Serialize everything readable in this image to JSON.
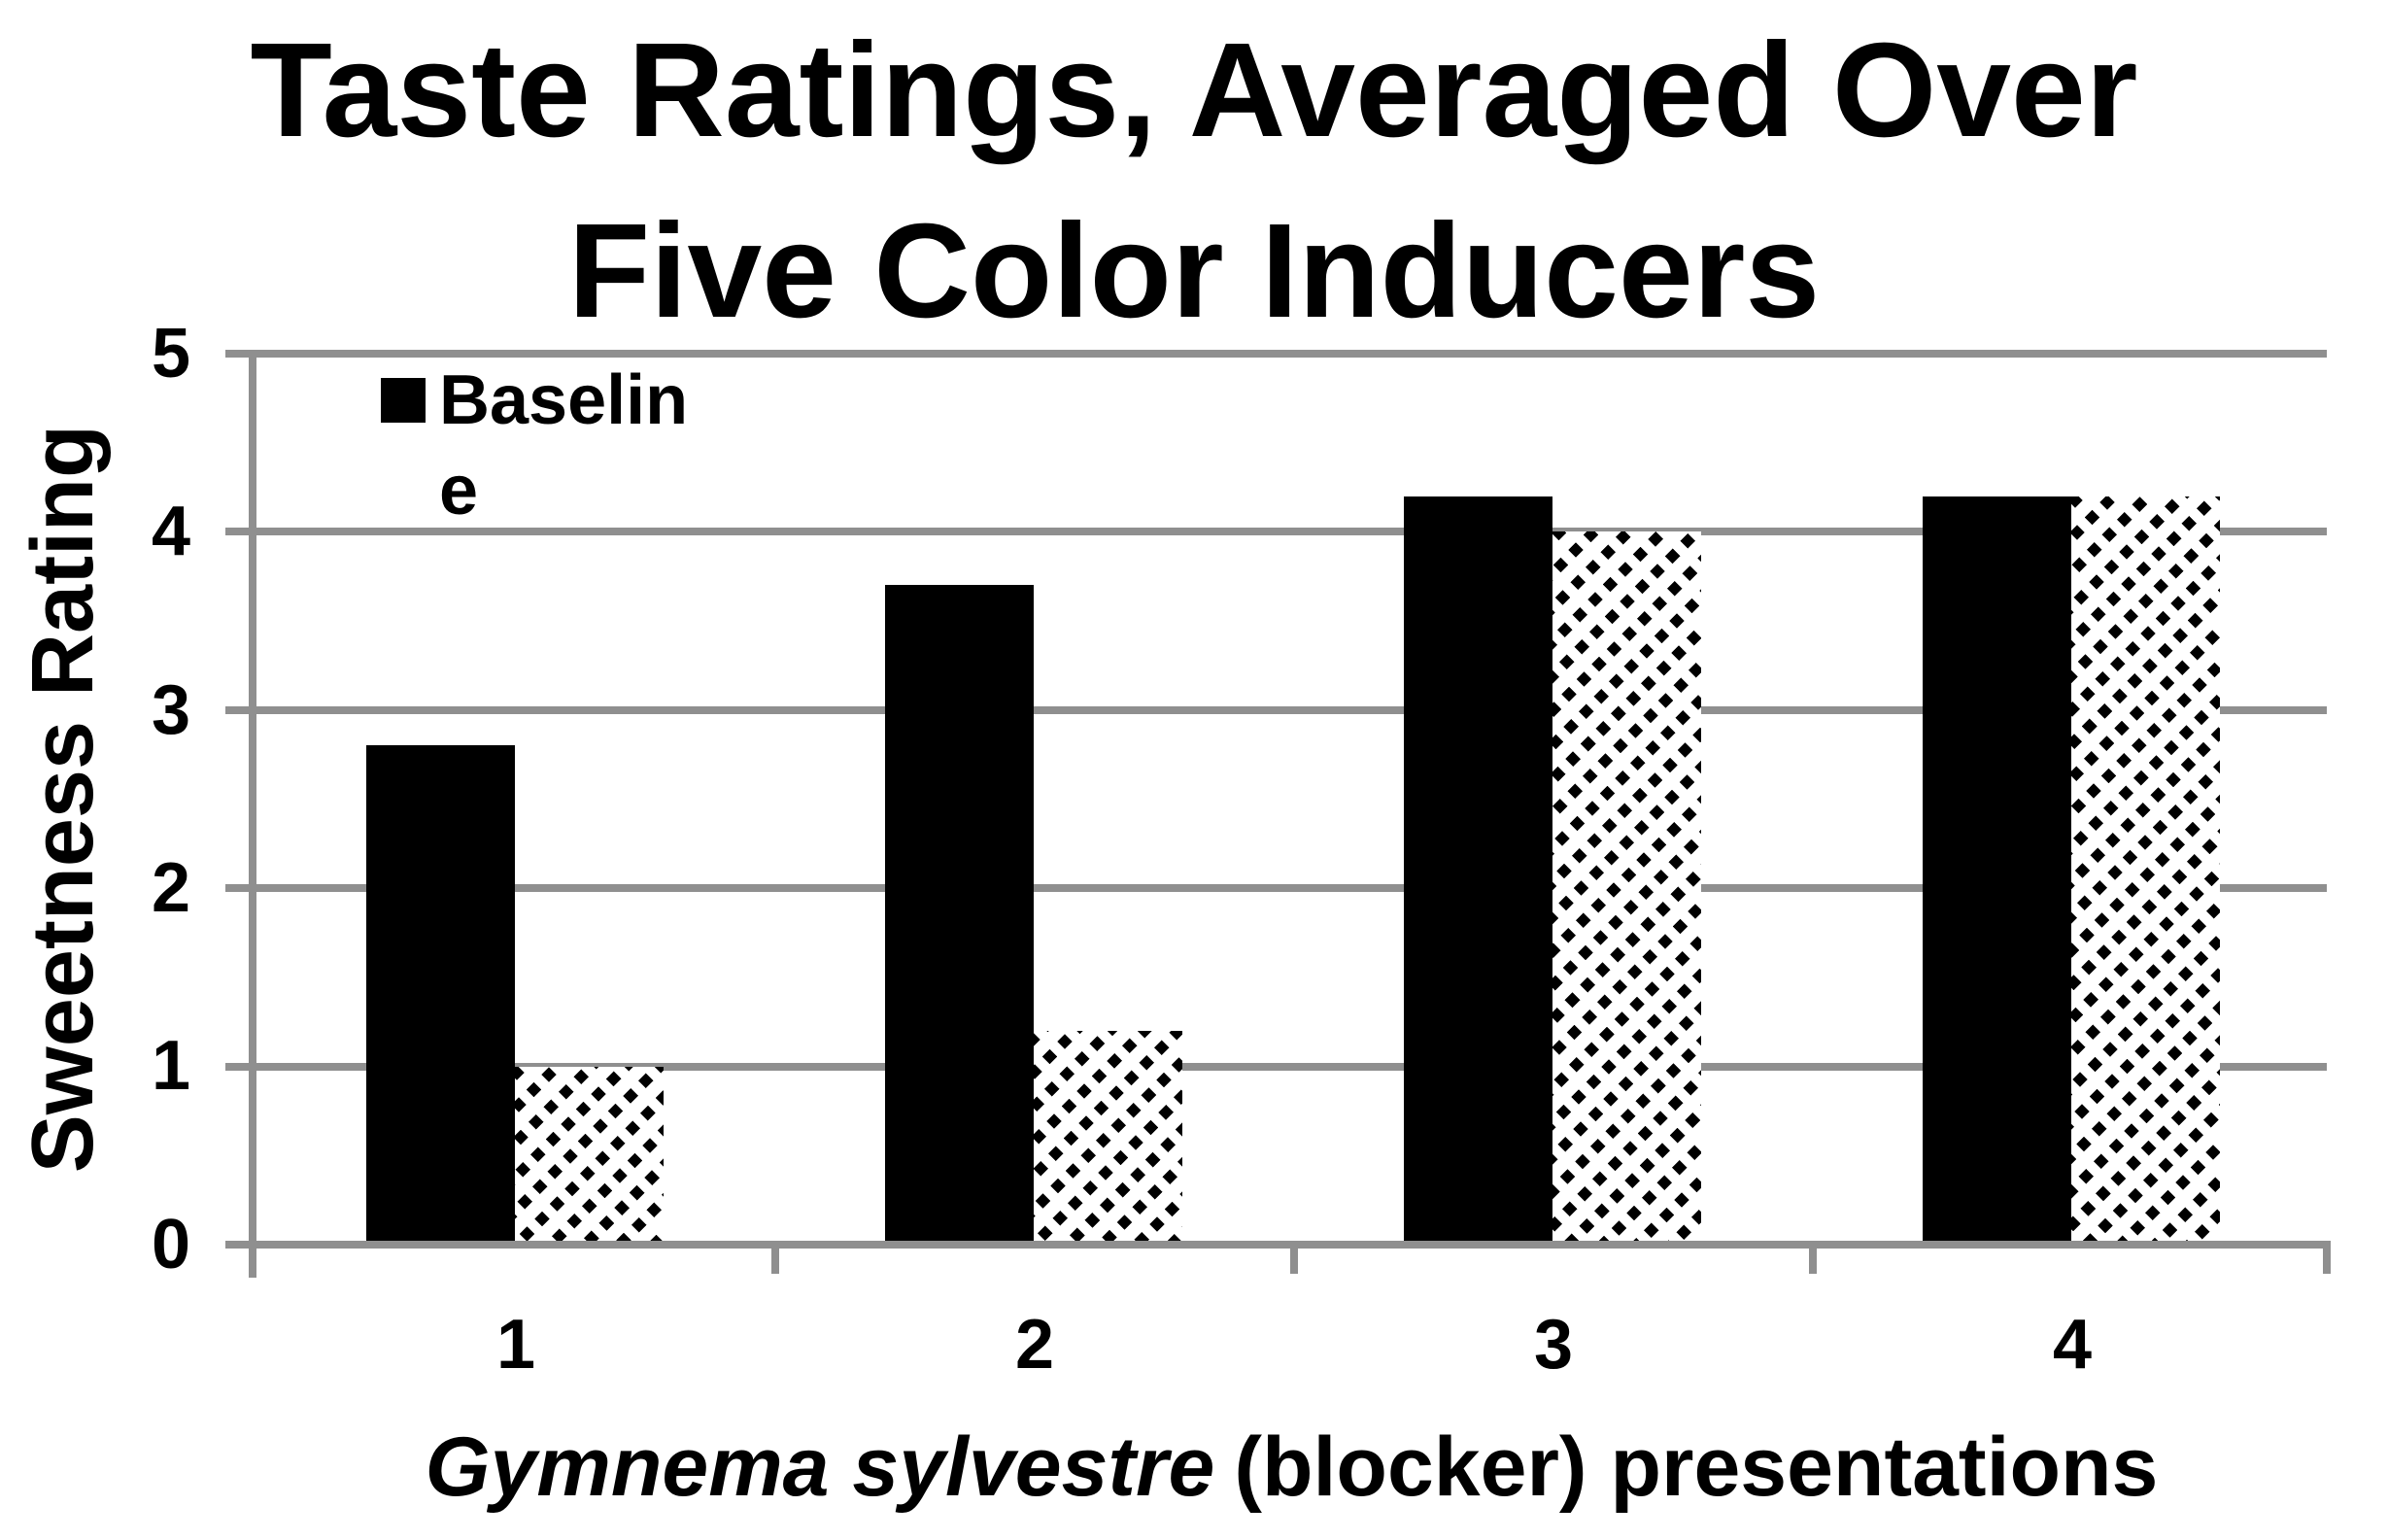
{
  "title": {
    "line1": "Taste Ratings, Averaged Over",
    "line2": "Five Color Inducers"
  },
  "legend": {
    "label": "Baseline",
    "lines": [
      "Baselin",
      "e"
    ]
  },
  "y_axis": {
    "label": "Sweetness Rating",
    "ticks": [
      "5",
      "4",
      "3",
      "2",
      "1",
      "0"
    ]
  },
  "x_axis": {
    "title_italic": "Gymnema sylvestre",
    "title_rest": "(blocker) presentations",
    "categories": [
      "1",
      "2",
      "3",
      "4"
    ]
  },
  "colors": {
    "grid": "#8f8f8f",
    "bar_solid": "#000000",
    "background": "#ffffff"
  },
  "chart_data": {
    "type": "bar",
    "categories": [
      "1",
      "2",
      "3",
      "4"
    ],
    "series": [
      {
        "name": "Baseline",
        "style": "solid",
        "values": [
          2.8,
          3.7,
          4.2,
          4.2
        ]
      },
      {
        "name": "",
        "style": "hatched",
        "values": [
          1.0,
          1.2,
          4.0,
          4.2
        ]
      }
    ],
    "title": "Taste Ratings, Averaged Over Five Color Inducers",
    "xlabel": "Gymnema sylvestre (blocker) presentations",
    "ylabel": "Sweetness Rating",
    "ylim": [
      0,
      5
    ],
    "ytick_step": 1,
    "gridlines": "horizontal",
    "legend_position": "inside-top-left"
  }
}
